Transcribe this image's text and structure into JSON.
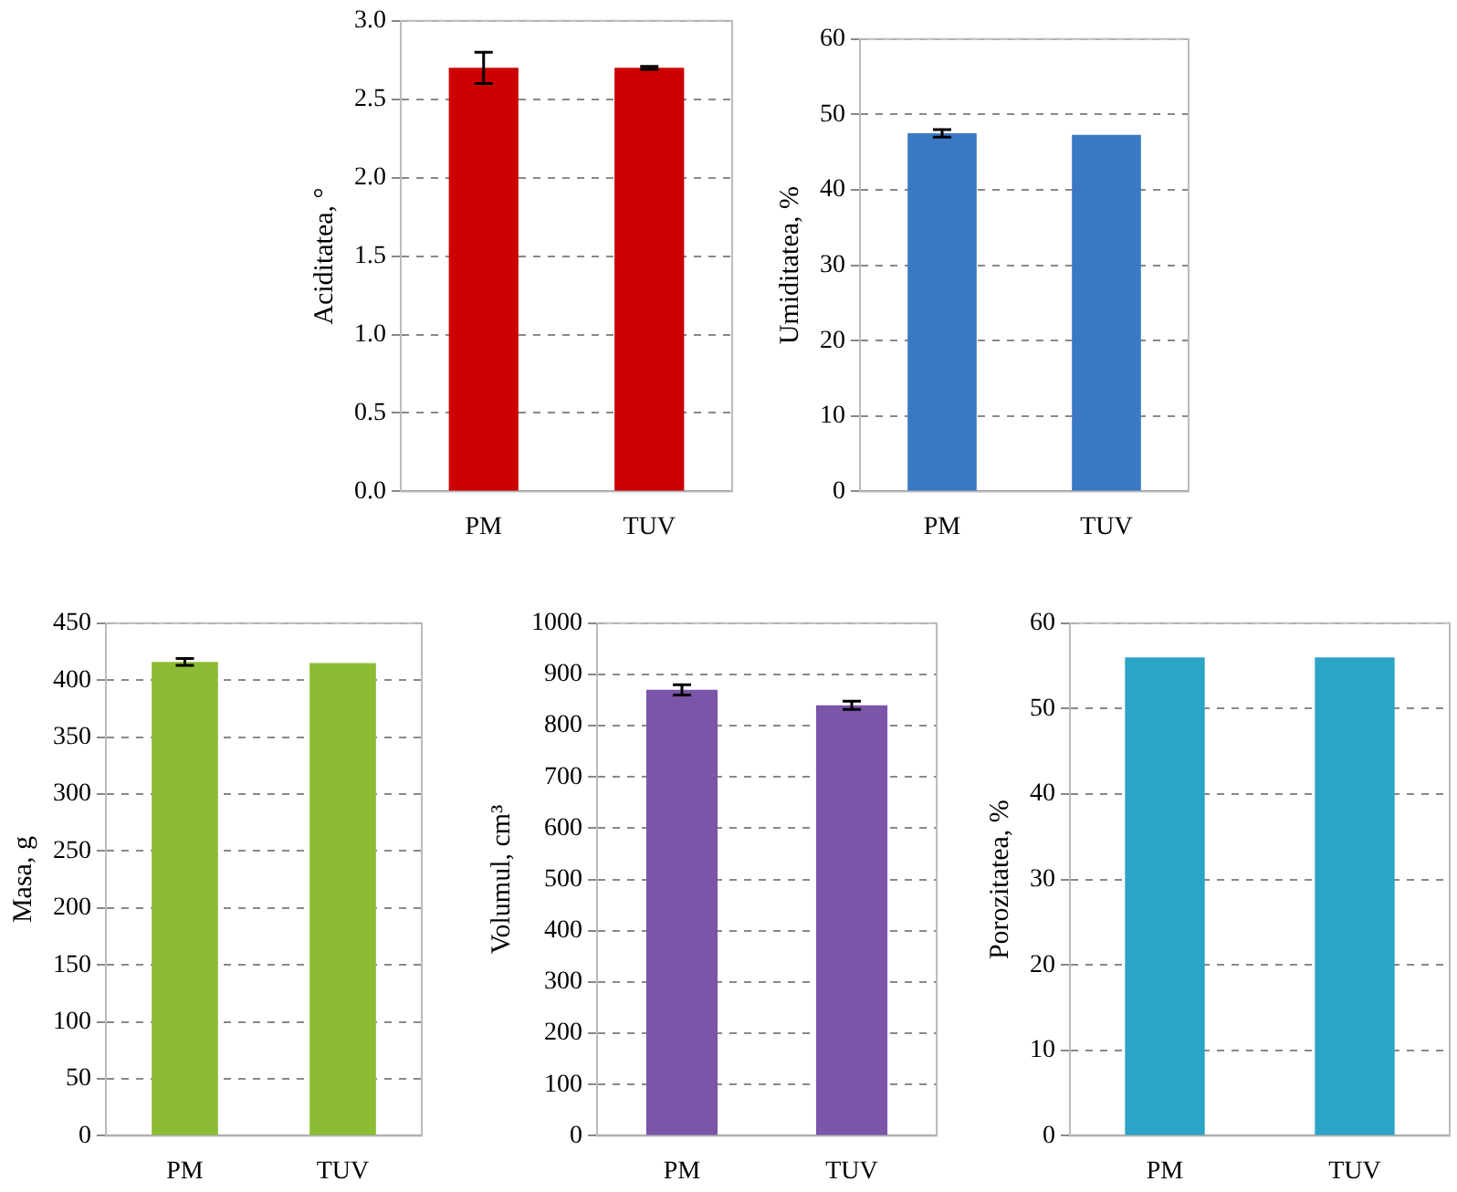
{
  "chart_data": [
    {
      "type": "bar",
      "ylabel": "Aciditatea, °",
      "categories": [
        "PM",
        "TUV"
      ],
      "values": [
        2.7,
        2.7
      ],
      "errors": [
        0.1,
        0.01
      ],
      "color": "#cc0000",
      "ylim": [
        0,
        3
      ],
      "yticks": [
        {
          "value": 0,
          "label": "0.0"
        },
        {
          "value": 0.5,
          "label": "0.5"
        },
        {
          "value": 1,
          "label": "1.0"
        },
        {
          "value": 1.5,
          "label": "1.5"
        },
        {
          "value": 2,
          "label": "2.0"
        },
        {
          "value": 2.5,
          "label": "2.5"
        },
        {
          "value": 3,
          "label": "3.0"
        }
      ],
      "grid": "y"
    },
    {
      "type": "bar",
      "ylabel": "Umiditatea, %",
      "categories": [
        "PM",
        "TUV"
      ],
      "values": [
        47.5,
        47.3
      ],
      "errors": [
        0.5,
        null
      ],
      "color": "#3a78c4",
      "ylim": [
        0,
        60
      ],
      "yticks": [
        0,
        10,
        20,
        30,
        40,
        50,
        60
      ],
      "grid": "y"
    },
    {
      "type": "bar",
      "ylabel": "Masa, g",
      "categories": [
        "PM",
        "TUV"
      ],
      "values": [
        416,
        415
      ],
      "errors": [
        3,
        null
      ],
      "color": "#8cbc34",
      "ylim": [
        0,
        450
      ],
      "yticks": [
        0,
        50,
        100,
        150,
        200,
        250,
        300,
        350,
        400,
        450
      ],
      "grid": "y"
    },
    {
      "type": "bar",
      "ylabel": "Volumul, cm³",
      "categories": [
        "PM",
        "TUV"
      ],
      "values": [
        870,
        840
      ],
      "errors": [
        10,
        8
      ],
      "color": "#7a55a8",
      "ylim": [
        0,
        1000
      ],
      "yticks": [
        0,
        100,
        200,
        300,
        400,
        500,
        600,
        700,
        800,
        900,
        1000
      ],
      "grid": "y"
    },
    {
      "type": "bar",
      "ylabel": "Porozitatea, %",
      "categories": [
        "PM",
        "TUV"
      ],
      "values": [
        56,
        56
      ],
      "color": "#2ba4c8",
      "ylim": [
        0,
        60
      ],
      "yticks": [
        0,
        10,
        20,
        30,
        40,
        50,
        60
      ],
      "grid": "y"
    }
  ]
}
